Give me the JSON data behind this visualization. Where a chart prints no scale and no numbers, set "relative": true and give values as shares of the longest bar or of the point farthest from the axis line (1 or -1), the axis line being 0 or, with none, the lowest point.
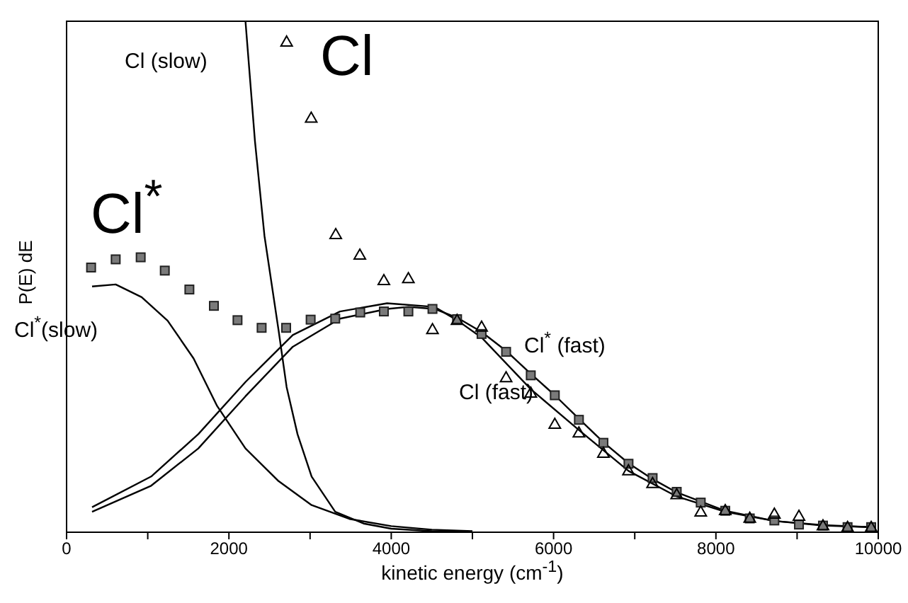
{
  "chart_data": {
    "type": "line",
    "relative": true,
    "xlabel": "kinetic energy (cm$^{-1}$)",
    "ylabel": "P(E) dE",
    "xlim": [
      0,
      10000
    ],
    "xticks": [
      0,
      {
        "value": 1000,
        "label": null
      },
      2000,
      {
        "value": 3000,
        "label": null
      },
      4000,
      {
        "value": 5000,
        "label": null
      },
      6000,
      {
        "value": 7000,
        "label": null
      },
      8000,
      {
        "value": 9000,
        "label": null
      },
      10000
    ],
    "grid": false,
    "legend": false,
    "series": [
      {
        "name": "Cl (slow)",
        "marker": "none",
        "line_style": "solid",
        "color": "#000000",
        "x": [
          2204,
          2321,
          2438,
          2612,
          2711,
          2845,
          3019,
          3310,
          3660,
          4000,
          4500,
          5000
        ],
        "values": [
          1.0,
          0.765,
          0.58,
          0.395,
          0.284,
          0.192,
          0.109,
          0.04,
          0.017,
          0.007,
          0.002,
          0.0
        ]
      },
      {
        "name": "Cl$^{*}$(slow)",
        "marker": "none",
        "line_style": "solid",
        "color": "#000000",
        "x": [
          314,
          605,
          925,
          1245,
          1565,
          1855,
          2204,
          2612,
          3019,
          3485,
          4000,
          4500,
          5000
        ],
        "values": [
          0.481,
          0.485,
          0.46,
          0.414,
          0.34,
          0.247,
          0.164,
          0.1,
          0.053,
          0.026,
          0.012,
          0.005,
          0.002
        ]
      },
      {
        "name": "Cl (fast)",
        "marker": "none",
        "line_style": "solid",
        "color": "#000000",
        "x": [
          314,
          1042,
          1623,
          2204,
          2787,
          3368,
          3949,
          4532,
          4811,
          5113,
          5719,
          6312,
          6923,
          7517,
          8115,
          8720,
          9319,
          9900
        ],
        "values": [
          0.049,
          0.109,
          0.192,
          0.294,
          0.386,
          0.432,
          0.448,
          0.441,
          0.415,
          0.381,
          0.28,
          0.2,
          0.12,
          0.07,
          0.04,
          0.022,
          0.014,
          0.01
        ]
      },
      {
        "name": "Cl$^{*}$ (fast)",
        "marker": "none",
        "line_style": "solid",
        "color": "#000000",
        "x": [
          314,
          1042,
          1623,
          2204,
          2787,
          3368,
          3949,
          4211,
          4532,
          4811,
          5113,
          5415,
          5719,
          6015,
          6312,
          6614,
          6923,
          7220,
          7517,
          8115,
          8720,
          9319,
          9900
        ],
        "values": [
          0.04,
          0.091,
          0.164,
          0.266,
          0.363,
          0.418,
          0.437,
          0.441,
          0.437,
          0.42,
          0.392,
          0.355,
          0.31,
          0.268,
          0.222,
          0.176,
          0.135,
          0.104,
          0.078,
          0.042,
          0.022,
          0.013,
          0.01
        ]
      },
      {
        "name": "Cl",
        "type": "scatter",
        "marker": "triangle",
        "color": "#000000",
        "x": [
          2711,
          3014,
          3316,
          3613,
          3909,
          4211,
          4508,
          4811,
          5113,
          5415,
          5719,
          6015,
          6312,
          6614,
          6923,
          7220,
          7517,
          7813,
          8115,
          8417,
          8720,
          9023,
          9319,
          9622,
          9913
        ],
        "values": [
          0.96,
          0.811,
          0.583,
          0.543,
          0.493,
          0.497,
          0.397,
          0.415,
          0.402,
          0.303,
          0.273,
          0.212,
          0.195,
          0.155,
          0.121,
          0.096,
          0.074,
          0.04,
          0.043,
          0.028,
          0.036,
          0.032,
          0.013,
          0.01,
          0.01
        ]
      },
      {
        "name": "Cl$^{*}$",
        "type": "scatter",
        "marker": "square",
        "color": "#7a7a7a",
        "x": [
          302,
          605,
          913,
          1210,
          1513,
          1815,
          2106,
          2403,
          2705,
          3007,
          3310,
          3618,
          3909,
          4211,
          4508,
          4811,
          5113,
          5415,
          5719,
          6015,
          6312,
          6614,
          6923,
          7220,
          7517,
          7813,
          8115,
          8417,
          8720,
          9023,
          9319,
          9622,
          9913
        ],
        "values": [
          0.518,
          0.534,
          0.538,
          0.512,
          0.475,
          0.443,
          0.415,
          0.4,
          0.4,
          0.416,
          0.418,
          0.43,
          0.432,
          0.432,
          0.437,
          0.417,
          0.388,
          0.353,
          0.307,
          0.268,
          0.22,
          0.175,
          0.134,
          0.106,
          0.079,
          0.058,
          0.042,
          0.027,
          0.023,
          0.015,
          0.013,
          0.01,
          0.01
        ]
      }
    ]
  }
}
